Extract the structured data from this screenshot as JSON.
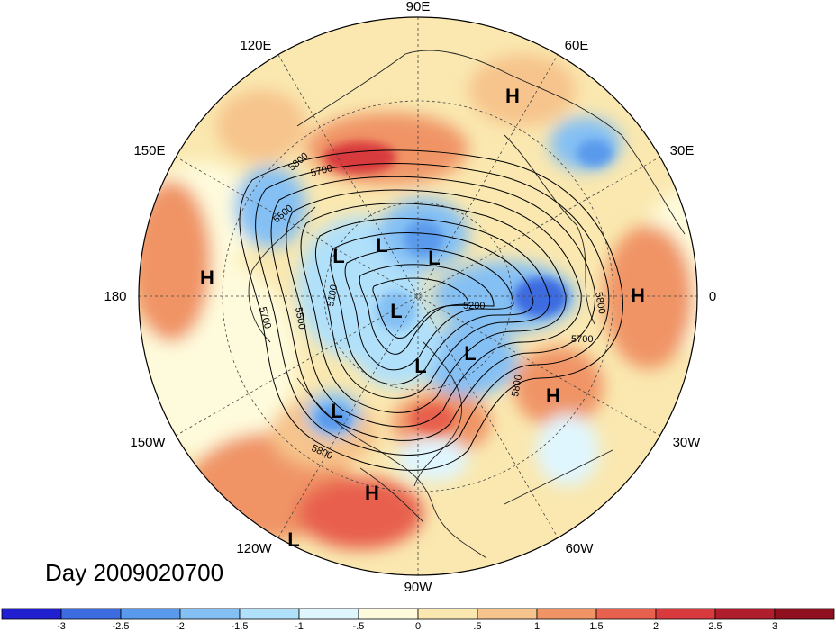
{
  "title": "Day 2009020700",
  "longitude_labels": {
    "lon_90e": "90E",
    "lon_120e": "120E",
    "lon_60e": "60E",
    "lon_150e": "150E",
    "lon_30e": "30E",
    "lon_180": "180",
    "lon_0": "0",
    "lon_150w": "150W",
    "lon_30w": "30W",
    "lon_120w": "120W",
    "lon_60w": "60W",
    "lon_90w": "90W"
  },
  "pressure_centers": {
    "h1": "H",
    "h2": "H",
    "h3": "H",
    "h4": "H",
    "h5": "H",
    "l1": "L",
    "l2": "L",
    "l3": "L",
    "l4": "L",
    "l5": "L",
    "l6": "L",
    "l7": "L",
    "l8": "L"
  },
  "contour_labels": {
    "c5800a": "5800",
    "c5700a": "5700",
    "c5500a": "5500",
    "c5700b": "5700",
    "c5500b": "5500",
    "c5100": "5100",
    "c5200": "5200",
    "c5800b": "5800",
    "c5700c": "5700",
    "c5800c": "5800",
    "c5800d": "5800"
  },
  "colorbar": {
    "ticks": [
      "-3",
      "-2.5",
      "-2",
      "-1.5",
      "-1",
      "-.5",
      "0",
      ".5",
      "1",
      "1.5",
      "2",
      "2.5",
      "3"
    ],
    "colors": [
      "#2020d0",
      "#3c6ce0",
      "#5a9aec",
      "#84c0f4",
      "#b0e0fa",
      "#e0f6fe",
      "#fefbdc",
      "#fae8b0",
      "#f6c48c",
      "#f09466",
      "#e8604e",
      "#d83a3e",
      "#b01e2e",
      "#901020"
    ]
  }
}
